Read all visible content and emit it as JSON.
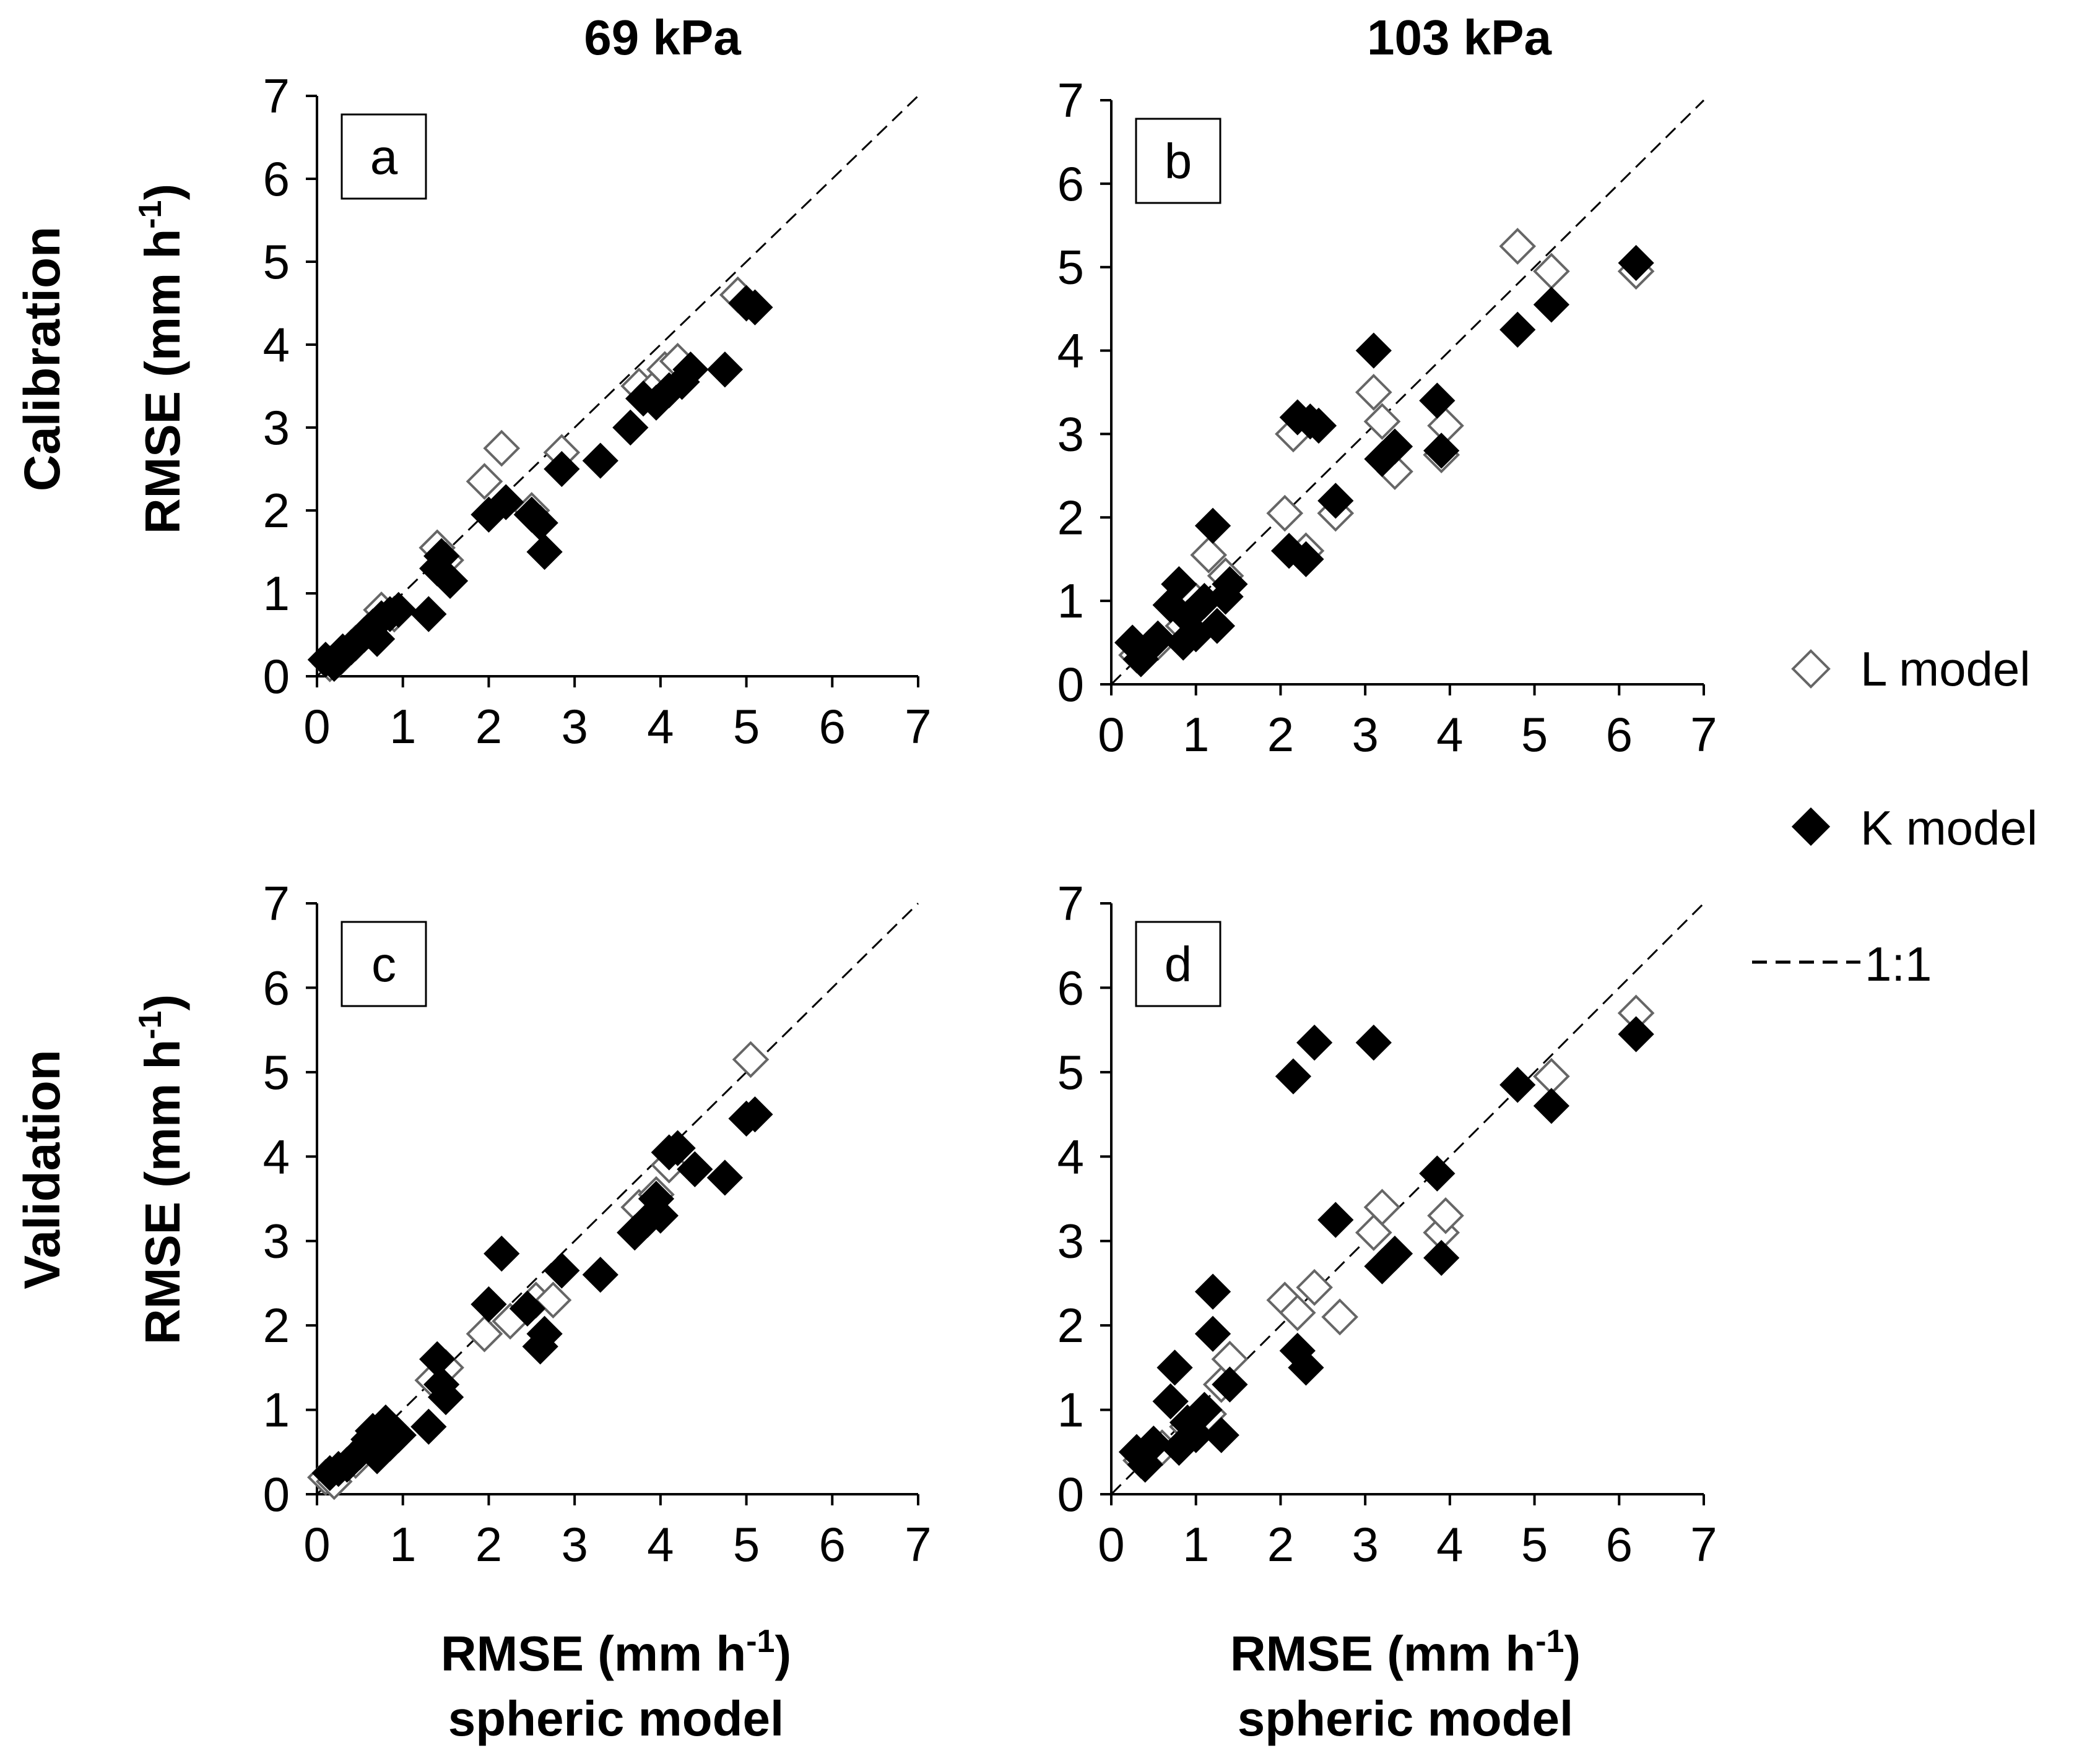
{
  "col_labels": [
    "69 kPa",
    "103 kPa"
  ],
  "row_labels": [
    "Calibration",
    "Validation"
  ],
  "axis_label": {
    "y_main": "RMSE (mm h",
    "y_sup": "-1",
    "y_close": ")",
    "x_main": "RMSE (mm h",
    "x_sup": "-1",
    "x_close": ")",
    "x_line2": "spheric model"
  },
  "legend": {
    "l_model": "L model",
    "k_model": "K model",
    "one_to_one": "1:1"
  },
  "ticks": [
    "0",
    "1",
    "2",
    "3",
    "4",
    "5",
    "6",
    "7"
  ],
  "chart_data": [
    {
      "type": "scatter",
      "panel": "a",
      "row": "Calibration",
      "column": "69 kPa",
      "xlim": [
        0,
        7
      ],
      "ylim": [
        0,
        7
      ],
      "xlabel": "RMSE (mm h-1) spheric model",
      "ylabel": "RMSE (mm h-1)",
      "series": [
        {
          "name": "L model",
          "marker": "open-diamond",
          "points": [
            [
              0.15,
              0.15
            ],
            [
              0.25,
              0.2
            ],
            [
              0.45,
              0.4
            ],
            [
              0.6,
              0.55
            ],
            [
              0.75,
              0.8
            ],
            [
              0.9,
              0.75
            ],
            [
              1.4,
              1.55
            ],
            [
              1.5,
              1.4
            ],
            [
              1.95,
              2.35
            ],
            [
              2.15,
              2.75
            ],
            [
              2.5,
              2.0
            ],
            [
              2.85,
              2.7
            ],
            [
              3.75,
              3.5
            ],
            [
              3.9,
              3.45
            ],
            [
              4.05,
              3.7
            ],
            [
              4.2,
              3.8
            ],
            [
              4.9,
              4.6
            ],
            [
              5.0,
              4.5
            ]
          ]
        },
        {
          "name": "K model",
          "marker": "filled-diamond",
          "points": [
            [
              0.1,
              0.2
            ],
            [
              0.2,
              0.15
            ],
            [
              0.3,
              0.3
            ],
            [
              0.4,
              0.35
            ],
            [
              0.55,
              0.5
            ],
            [
              0.65,
              0.6
            ],
            [
              0.7,
              0.45
            ],
            [
              0.75,
              0.7
            ],
            [
              0.85,
              0.75
            ],
            [
              0.95,
              0.8
            ],
            [
              1.3,
              0.75
            ],
            [
              1.4,
              1.3
            ],
            [
              1.45,
              1.45
            ],
            [
              1.55,
              1.15
            ],
            [
              2.0,
              1.95
            ],
            [
              2.2,
              2.1
            ],
            [
              2.5,
              1.95
            ],
            [
              2.6,
              1.85
            ],
            [
              2.65,
              1.5
            ],
            [
              2.85,
              2.5
            ],
            [
              3.3,
              2.6
            ],
            [
              3.65,
              3.0
            ],
            [
              3.8,
              3.35
            ],
            [
              3.95,
              3.3
            ],
            [
              4.1,
              3.45
            ],
            [
              4.25,
              3.55
            ],
            [
              4.35,
              3.7
            ],
            [
              4.75,
              3.7
            ],
            [
              5.0,
              4.5
            ],
            [
              5.1,
              4.45
            ]
          ]
        }
      ]
    },
    {
      "type": "scatter",
      "panel": "b",
      "row": "Calibration",
      "column": "103 kPa",
      "xlim": [
        0,
        7
      ],
      "ylim": [
        0,
        7
      ],
      "xlabel": "RMSE (mm h-1) spheric model",
      "ylabel": "",
      "series": [
        {
          "name": "L model",
          "marker": "open-diamond",
          "points": [
            [
              0.3,
              0.35
            ],
            [
              0.55,
              0.5
            ],
            [
              0.85,
              0.7
            ],
            [
              1.0,
              1.0
            ],
            [
              1.15,
              1.55
            ],
            [
              1.35,
              1.3
            ],
            [
              2.05,
              2.05
            ],
            [
              2.15,
              3.0
            ],
            [
              2.3,
              1.6
            ],
            [
              2.65,
              2.05
            ],
            [
              3.1,
              3.5
            ],
            [
              3.2,
              3.15
            ],
            [
              3.35,
              2.55
            ],
            [
              3.9,
              2.75
            ],
            [
              3.95,
              3.1
            ],
            [
              4.8,
              5.25
            ],
            [
              5.2,
              4.95
            ],
            [
              6.2,
              4.95
            ]
          ]
        },
        {
          "name": "K model",
          "marker": "filled-diamond",
          "points": [
            [
              0.25,
              0.5
            ],
            [
              0.35,
              0.3
            ],
            [
              0.45,
              0.45
            ],
            [
              0.55,
              0.55
            ],
            [
              0.7,
              0.95
            ],
            [
              0.8,
              1.2
            ],
            [
              0.85,
              0.5
            ],
            [
              0.9,
              0.8
            ],
            [
              1.0,
              0.6
            ],
            [
              1.1,
              1.0
            ],
            [
              1.2,
              1.9
            ],
            [
              1.25,
              0.7
            ],
            [
              1.35,
              1.05
            ],
            [
              1.4,
              1.2
            ],
            [
              2.1,
              1.6
            ],
            [
              2.2,
              3.2
            ],
            [
              2.3,
              1.5
            ],
            [
              2.35,
              3.15
            ],
            [
              2.45,
              3.1
            ],
            [
              2.65,
              2.2
            ],
            [
              3.1,
              4.0
            ],
            [
              3.2,
              2.7
            ],
            [
              3.35,
              2.85
            ],
            [
              3.85,
              3.4
            ],
            [
              3.9,
              2.8
            ],
            [
              4.8,
              4.25
            ],
            [
              5.2,
              4.55
            ],
            [
              6.2,
              5.05
            ]
          ]
        }
      ]
    },
    {
      "type": "scatter",
      "panel": "c",
      "row": "Validation",
      "column": "69 kPa",
      "xlim": [
        0,
        7
      ],
      "ylim": [
        0,
        7
      ],
      "xlabel": "RMSE (mm h-1) spheric model",
      "ylabel": "RMSE (mm h-1)",
      "series": [
        {
          "name": "L model",
          "marker": "open-diamond",
          "points": [
            [
              0.1,
              0.2
            ],
            [
              0.2,
              0.15
            ],
            [
              0.45,
              0.4
            ],
            [
              0.6,
              0.6
            ],
            [
              0.8,
              0.75
            ],
            [
              1.35,
              1.35
            ],
            [
              1.5,
              1.5
            ],
            [
              1.95,
              1.9
            ],
            [
              2.25,
              2.05
            ],
            [
              2.55,
              2.3
            ],
            [
              2.75,
              2.3
            ],
            [
              3.75,
              3.4
            ],
            [
              3.95,
              3.55
            ],
            [
              4.1,
              3.9
            ],
            [
              5.05,
              5.15
            ]
          ]
        },
        {
          "name": "K model",
          "marker": "filled-diamond",
          "points": [
            [
              0.15,
              0.25
            ],
            [
              0.25,
              0.3
            ],
            [
              0.35,
              0.35
            ],
            [
              0.5,
              0.5
            ],
            [
              0.6,
              0.65
            ],
            [
              0.65,
              0.75
            ],
            [
              0.7,
              0.45
            ],
            [
              0.8,
              0.85
            ],
            [
              0.85,
              0.6
            ],
            [
              0.95,
              0.7
            ],
            [
              1.3,
              0.8
            ],
            [
              1.4,
              1.6
            ],
            [
              1.45,
              1.3
            ],
            [
              1.5,
              1.15
            ],
            [
              2.0,
              2.25
            ],
            [
              2.15,
              2.85
            ],
            [
              2.45,
              2.2
            ],
            [
              2.6,
              1.75
            ],
            [
              2.65,
              1.9
            ],
            [
              2.85,
              2.65
            ],
            [
              3.3,
              2.6
            ],
            [
              3.7,
              3.1
            ],
            [
              3.85,
              3.25
            ],
            [
              3.95,
              3.5
            ],
            [
              4.0,
              3.3
            ],
            [
              4.1,
              4.05
            ],
            [
              4.2,
              4.1
            ],
            [
              4.4,
              3.85
            ],
            [
              4.75,
              3.75
            ],
            [
              5.0,
              4.45
            ],
            [
              5.1,
              4.5
            ]
          ]
        }
      ]
    },
    {
      "type": "scatter",
      "panel": "d",
      "row": "Validation",
      "column": "103 kPa",
      "xlim": [
        0,
        7
      ],
      "ylim": [
        0,
        7
      ],
      "xlabel": "RMSE (mm h-1) spheric model",
      "ylabel": "",
      "series": [
        {
          "name": "L model",
          "marker": "open-diamond",
          "points": [
            [
              0.35,
              0.4
            ],
            [
              0.6,
              0.55
            ],
            [
              0.9,
              0.8
            ],
            [
              1.15,
              0.95
            ],
            [
              1.3,
              1.3
            ],
            [
              1.4,
              1.6
            ],
            [
              2.05,
              2.3
            ],
            [
              2.2,
              2.15
            ],
            [
              2.4,
              2.45
            ],
            [
              2.7,
              2.1
            ],
            [
              3.1,
              3.1
            ],
            [
              3.2,
              3.4
            ],
            [
              3.9,
              3.1
            ],
            [
              3.95,
              3.3
            ],
            [
              5.2,
              4.95
            ],
            [
              6.2,
              5.7
            ]
          ]
        },
        {
          "name": "K model",
          "marker": "filled-diamond",
          "points": [
            [
              0.3,
              0.5
            ],
            [
              0.4,
              0.35
            ],
            [
              0.5,
              0.6
            ],
            [
              0.7,
              1.1
            ],
            [
              0.75,
              1.5
            ],
            [
              0.8,
              0.55
            ],
            [
              0.9,
              0.85
            ],
            [
              1.0,
              0.7
            ],
            [
              1.1,
              1.0
            ],
            [
              1.2,
              2.4
            ],
            [
              1.2,
              1.9
            ],
            [
              1.3,
              0.7
            ],
            [
              1.4,
              1.3
            ],
            [
              2.15,
              4.95
            ],
            [
              2.2,
              1.7
            ],
            [
              2.3,
              1.5
            ],
            [
              2.4,
              5.35
            ],
            [
              2.65,
              3.25
            ],
            [
              3.1,
              5.35
            ],
            [
              3.2,
              2.7
            ],
            [
              3.35,
              2.85
            ],
            [
              3.85,
              3.8
            ],
            [
              3.9,
              2.8
            ],
            [
              4.8,
              4.85
            ],
            [
              5.2,
              4.6
            ],
            [
              6.2,
              5.45
            ]
          ]
        }
      ]
    }
  ]
}
